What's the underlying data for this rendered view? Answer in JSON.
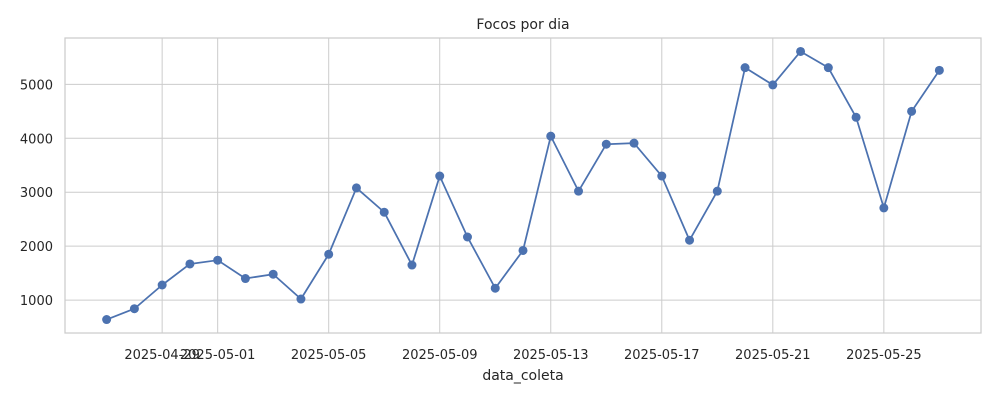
{
  "chart_data": {
    "type": "line",
    "title": "Focos por dia",
    "xlabel": "data_coleta",
    "ylabel": "",
    "x": [
      "2025-04-27",
      "2025-04-28",
      "2025-04-29",
      "2025-04-30",
      "2025-05-01",
      "2025-05-02",
      "2025-05-03",
      "2025-05-04",
      "2025-05-05",
      "2025-05-06",
      "2025-05-07",
      "2025-05-08",
      "2025-05-09",
      "2025-05-10",
      "2025-05-11",
      "2025-05-12",
      "2025-05-13",
      "2025-05-14",
      "2025-05-15",
      "2025-05-16",
      "2025-05-17",
      "2025-05-18",
      "2025-05-19",
      "2025-05-20",
      "2025-05-21",
      "2025-05-22",
      "2025-05-23",
      "2025-05-24",
      "2025-05-25",
      "2025-05-26",
      "2025-05-27"
    ],
    "series": [
      {
        "values": [
          640,
          840,
          1280,
          1670,
          1740,
          1400,
          1480,
          1020,
          1850,
          3080,
          2630,
          1650,
          3300,
          2170,
          1220,
          1920,
          4040,
          3020,
          3890,
          3910,
          3300,
          2110,
          3020,
          5310,
          4990,
          5610,
          5310,
          4390,
          2710,
          4500,
          5260
        ],
        "color": "#4c72b0"
      }
    ],
    "x_ticks": [
      "2025-04-29",
      "2025-05-01",
      "2025-05-05",
      "2025-05-09",
      "2025-05-13",
      "2025-05-17",
      "2025-05-21",
      "2025-05-25"
    ],
    "x_tick_labels": [
      "2025-04-29",
      "2025-05-01",
      "2025-05-05",
      "2025-05-09",
      "2025-05-13",
      "2025-05-17",
      "2025-05-21",
      "2025-05-25"
    ],
    "y_ticks": [
      1000,
      2000,
      3000,
      4000,
      5000
    ],
    "y_tick_labels": [
      "1000",
      "2000",
      "3000",
      "4000",
      "5000"
    ],
    "xlim": [
      "2025-04-25T12:00",
      "2025-05-28T12:00"
    ],
    "ylim": [
      390,
      5860
    ],
    "grid": true,
    "legend": "none",
    "colors": {
      "line": "#4c72b0",
      "grid": "#cccccc",
      "frame": "#cccccc",
      "background": "#ffffff"
    }
  }
}
